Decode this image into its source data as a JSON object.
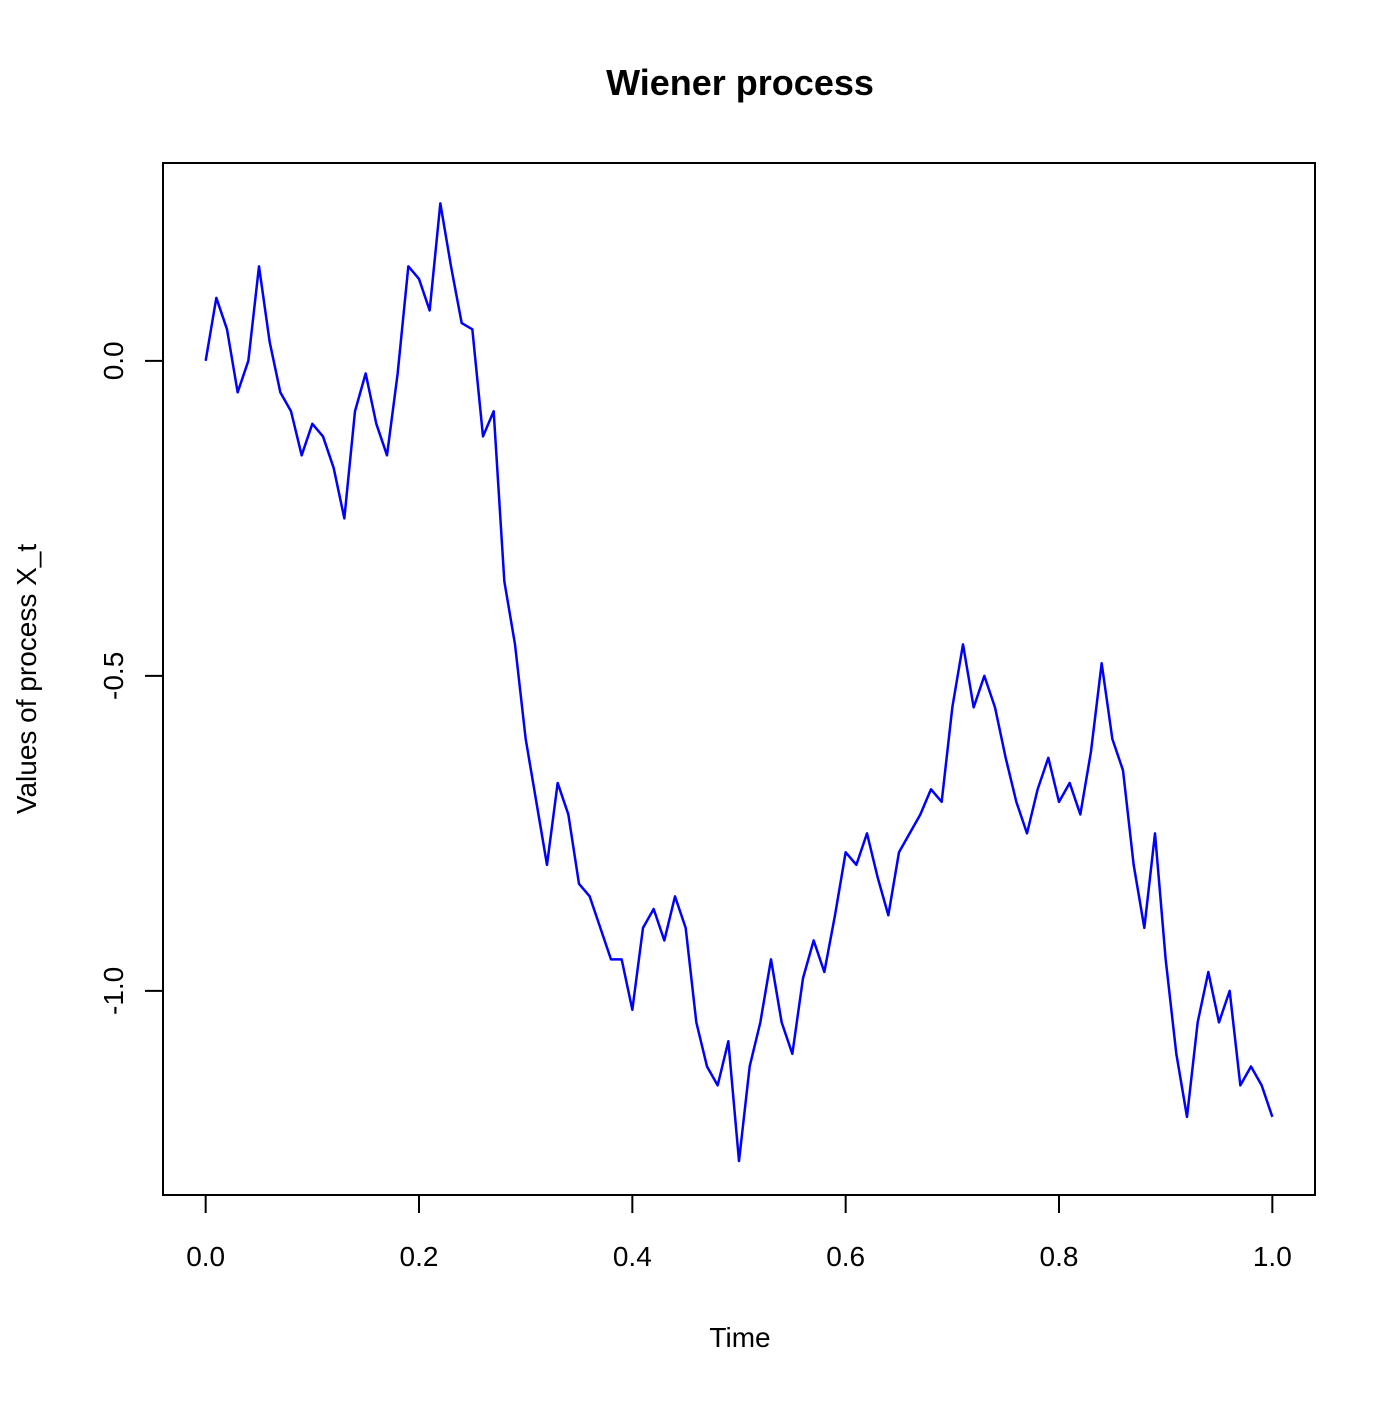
{
  "chart_data": {
    "type": "line",
    "title": "Wiener process",
    "x_label": "Time",
    "y_label": "Values of process X_t",
    "x": [
      0,
      0.01,
      0.02,
      0.03,
      0.04,
      0.05,
      0.06,
      0.07,
      0.08,
      0.09,
      0.1,
      0.11,
      0.12,
      0.13,
      0.14,
      0.15,
      0.16,
      0.17,
      0.18,
      0.19,
      0.2,
      0.21,
      0.22,
      0.23,
      0.24,
      0.25,
      0.26,
      0.27,
      0.28,
      0.29,
      0.3,
      0.31,
      0.32,
      0.33,
      0.34,
      0.35,
      0.36,
      0.37,
      0.38,
      0.39,
      0.4,
      0.41,
      0.42,
      0.43,
      0.44,
      0.45,
      0.46,
      0.47,
      0.48,
      0.49,
      0.5,
      0.51,
      0.52,
      0.53,
      0.54,
      0.55,
      0.56,
      0.57,
      0.58,
      0.59,
      0.6,
      0.61,
      0.62,
      0.63,
      0.64,
      0.65,
      0.66,
      0.67,
      0.68,
      0.69,
      0.7,
      0.71,
      0.72,
      0.73,
      0.74,
      0.75,
      0.76,
      0.77,
      0.78,
      0.79,
      0.8,
      0.81,
      0.82,
      0.83,
      0.84,
      0.85,
      0.86,
      0.87,
      0.88,
      0.89,
      0.9,
      0.91,
      0.92,
      0.93,
      0.94,
      0.95,
      0.96,
      0.97,
      0.98,
      0.99,
      1
    ],
    "series": [
      {
        "color": "#0000ff",
        "values": [
          0,
          0.1,
          0.05,
          -0.05,
          0,
          0.15,
          0.03,
          -0.05,
          -0.08,
          -0.15,
          -0.1,
          -0.12,
          -0.17,
          -0.25,
          -0.08,
          -0.02,
          -0.1,
          -0.15,
          -0.02,
          0.15,
          0.13,
          0.08,
          0.25,
          0.15,
          0.06,
          0.05,
          -0.12,
          -0.08,
          -0.35,
          -0.45,
          -0.6,
          -0.7,
          -0.8,
          -0.67,
          -0.72,
          -0.83,
          -0.85,
          -0.9,
          -0.95,
          -0.95,
          -1.03,
          -0.9,
          -0.87,
          -0.92,
          -0.85,
          -0.9,
          -1.05,
          -1.12,
          -1.15,
          -1.08,
          -1.27,
          -1.12,
          -1.05,
          -0.95,
          -1.05,
          -1.1,
          -0.98,
          -0.92,
          -0.97,
          -0.88,
          -0.78,
          -0.8,
          -0.75,
          -0.82,
          -0.88,
          -0.78,
          -0.75,
          -0.72,
          -0.68,
          -0.7,
          -0.55,
          -0.45,
          -0.55,
          -0.5,
          -0.55,
          -0.63,
          -0.7,
          -0.75,
          -0.68,
          -0.63,
          -0.7,
          -0.67,
          -0.72,
          -0.62,
          -0.48,
          -0.6,
          -0.65,
          -0.8,
          -0.9,
          -0.75,
          -0.95,
          -1.1,
          -1.2,
          -1.05,
          -0.97,
          -1.05,
          -1,
          -1.15,
          -1.12,
          -1.15,
          -1.2
        ]
      }
    ],
    "xlim": [
      -0.04,
      1.04
    ],
    "ylim": [
      -1.324,
      0.314
    ],
    "xticks": [
      {
        "value": 0,
        "label": "0.0"
      },
      {
        "value": 0.2,
        "label": "0.2"
      },
      {
        "value": 0.4,
        "label": "0.4"
      },
      {
        "value": 0.6,
        "label": "0.6"
      },
      {
        "value": 0.8,
        "label": "0.8"
      },
      {
        "value": 1,
        "label": "1.0"
      }
    ],
    "yticks": [
      {
        "value": -1,
        "label": "-1.0"
      },
      {
        "value": -0.5,
        "label": "-0.5"
      },
      {
        "value": 0,
        "label": "0.0"
      }
    ]
  }
}
